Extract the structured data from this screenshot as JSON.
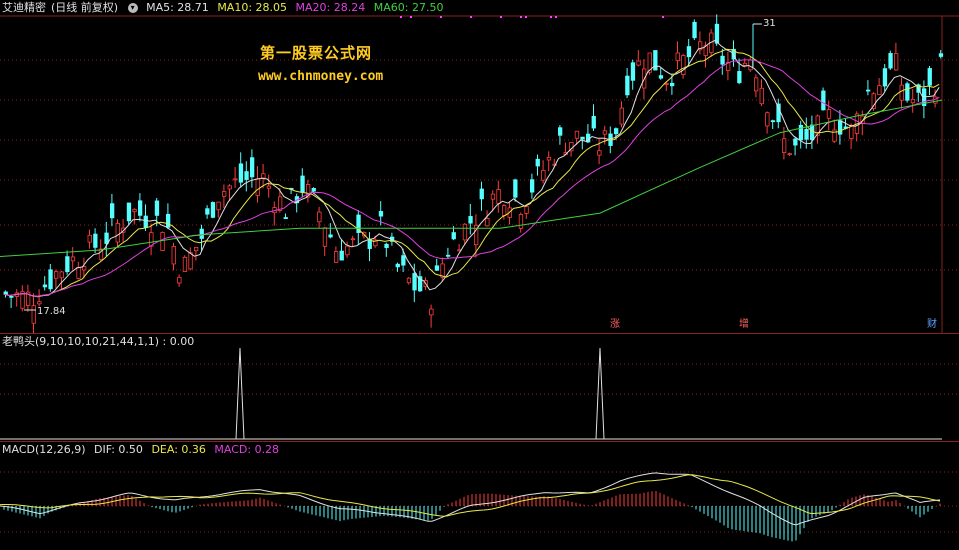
{
  "main": {
    "stock_name": "艾迪精密",
    "period_label": "(日线 前复权)",
    "ma_items": [
      {
        "label": "MA5: 28.71",
        "color": "#e0e0e0"
      },
      {
        "label": "MA10: 28.05",
        "color": "#e8e84a"
      },
      {
        "label": "MA20: 28.24",
        "color": "#e040e0"
      },
      {
        "label": "MA60: 27.50",
        "color": "#40d040"
      }
    ],
    "high_label": "31",
    "low_label": "17.84",
    "watermark_title": "第一股票公式网",
    "watermark_url": "www.chnmoney.com",
    "markers": [
      {
        "text": "涨",
        "color": "#ff6060"
      },
      {
        "text": "增",
        "color": "#ff6060"
      },
      {
        "text": "财",
        "color": "#60a0ff"
      }
    ]
  },
  "indicator": {
    "label": "老鸭头(9,10,10,10,21,44,1,1) : 0.00"
  },
  "macd": {
    "name": "MACD(12,26,9)",
    "dif": "DIF: 0.50",
    "dea": "DEA: 0.36",
    "macd": "MACD: 0.28"
  },
  "colors": {
    "up": "#ff3c3c",
    "down": "#54ffff",
    "ma5": "#e0e0e0",
    "ma10": "#e8e84a",
    "ma20": "#e040e0",
    "ma60": "#40d040",
    "grid": "#8a2020"
  },
  "chart_data": {
    "type": "candlestick",
    "price_range": [
      17.84,
      31
    ],
    "close_points": [
      [
        0,
        18.6
      ],
      [
        30,
        18.4
      ],
      [
        60,
        19.8
      ],
      [
        100,
        21.0
      ],
      [
        130,
        22.4
      ],
      [
        165,
        21.8
      ],
      [
        180,
        19.6
      ],
      [
        200,
        21.2
      ],
      [
        215,
        23.2
      ],
      [
        240,
        23.8
      ],
      [
        260,
        24.0
      ],
      [
        285,
        22.4
      ],
      [
        300,
        23.6
      ],
      [
        320,
        22.2
      ],
      [
        335,
        20.6
      ],
      [
        360,
        20.9
      ],
      [
        380,
        21.6
      ],
      [
        395,
        19.8
      ],
      [
        410,
        19.0
      ],
      [
        430,
        18.5
      ],
      [
        445,
        20.6
      ],
      [
        470,
        22.0
      ],
      [
        500,
        23.4
      ],
      [
        520,
        22.8
      ],
      [
        540,
        24.2
      ],
      [
        560,
        25.6
      ],
      [
        580,
        25.8
      ],
      [
        600,
        25.4
      ],
      [
        615,
        26.2
      ],
      [
        625,
        28.4
      ],
      [
        645,
        29.6
      ],
      [
        665,
        28.6
      ],
      [
        685,
        29.4
      ],
      [
        705,
        30.2
      ],
      [
        720,
        29.4
      ],
      [
        735,
        28.8
      ],
      [
        750,
        29.6
      ],
      [
        765,
        27.6
      ],
      [
        780,
        25.6
      ],
      [
        795,
        25.2
      ],
      [
        810,
        25.8
      ],
      [
        830,
        26.8
      ],
      [
        850,
        26.0
      ],
      [
        865,
        27.8
      ],
      [
        880,
        28.4
      ],
      [
        895,
        29.0
      ],
      [
        905,
        27.6
      ],
      [
        920,
        27.4
      ],
      [
        935,
        28.4
      ],
      [
        942,
        29.4
      ]
    ],
    "ma60_points": [
      [
        0,
        20.3
      ],
      [
        100,
        20.6
      ],
      [
        200,
        21.3
      ],
      [
        300,
        21.6
      ],
      [
        400,
        21.6
      ],
      [
        500,
        21.6
      ],
      [
        600,
        22.3
      ],
      [
        700,
        24.4
      ],
      [
        780,
        26.0
      ],
      [
        860,
        26.8
      ],
      [
        942,
        27.5
      ]
    ],
    "indicator_spikes": [
      240,
      600
    ],
    "macd_dif_points": [
      [
        0,
        0.0
      ],
      [
        40,
        -0.5
      ],
      [
        80,
        0.2
      ],
      [
        130,
        0.9
      ],
      [
        175,
        0.4
      ],
      [
        215,
        0.8
      ],
      [
        260,
        1.2
      ],
      [
        300,
        0.7
      ],
      [
        340,
        -0.2
      ],
      [
        385,
        -0.5
      ],
      [
        430,
        -1.1
      ],
      [
        470,
        0.0
      ],
      [
        510,
        0.5
      ],
      [
        545,
        1.0
      ],
      [
        590,
        0.9
      ],
      [
        620,
        1.8
      ],
      [
        655,
        2.4
      ],
      [
        690,
        2.2
      ],
      [
        720,
        1.3
      ],
      [
        760,
        0.0
      ],
      [
        795,
        -1.4
      ],
      [
        830,
        -0.6
      ],
      [
        865,
        0.6
      ],
      [
        895,
        1.0
      ],
      [
        920,
        0.2
      ],
      [
        942,
        0.5
      ]
    ],
    "macd_dea_points": [
      [
        0,
        0.1
      ],
      [
        50,
        -0.1
      ],
      [
        100,
        0.2
      ],
      [
        150,
        0.7
      ],
      [
        200,
        0.6
      ],
      [
        250,
        0.9
      ],
      [
        300,
        0.9
      ],
      [
        350,
        0.2
      ],
      [
        400,
        -0.3
      ],
      [
        445,
        -0.7
      ],
      [
        490,
        -0.2
      ],
      [
        540,
        0.6
      ],
      [
        590,
        0.9
      ],
      [
        640,
        1.7
      ],
      [
        690,
        2.2
      ],
      [
        730,
        1.8
      ],
      [
        770,
        0.7
      ],
      [
        810,
        -0.6
      ],
      [
        850,
        -0.2
      ],
      [
        890,
        0.8
      ],
      [
        920,
        0.6
      ],
      [
        942,
        0.36
      ]
    ]
  }
}
